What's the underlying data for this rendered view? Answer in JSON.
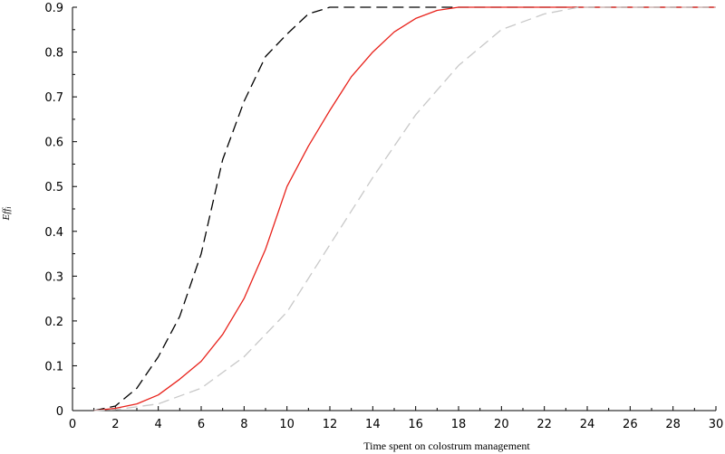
{
  "chart_data": {
    "type": "line",
    "title": "",
    "xlabel": "Time spent on colostrum management",
    "ylabel": "Eff",
    "ylabel_subscript": "i",
    "xlim": [
      0,
      30
    ],
    "ylim": [
      0,
      0.9
    ],
    "xticks": [
      0,
      2,
      4,
      6,
      8,
      10,
      12,
      14,
      16,
      18,
      20,
      22,
      24,
      26,
      28,
      30
    ],
    "yticks": [
      0,
      0.1,
      0.2,
      0.3,
      0.4,
      0.5,
      0.6,
      0.7,
      0.8,
      0.9
    ],
    "grid": false,
    "legend": "none",
    "series": [
      {
        "style": "dashed",
        "color": "#000000",
        "x": [
          1,
          2,
          3,
          4,
          5,
          6,
          7,
          8,
          9,
          10,
          11,
          12,
          30
        ],
        "y": [
          0,
          0.01,
          0.05,
          0.12,
          0.21,
          0.35,
          0.56,
          0.69,
          0.79,
          0.84,
          0.885,
          0.9,
          0.9
        ]
      },
      {
        "style": "solid",
        "color": "#e8221b",
        "x": [
          1,
          2,
          3,
          4,
          5,
          6,
          7,
          8,
          9,
          10,
          11,
          12,
          13,
          14,
          15,
          16,
          17,
          18,
          30
        ],
        "y": [
          0,
          0.005,
          0.015,
          0.035,
          0.07,
          0.11,
          0.17,
          0.25,
          0.36,
          0.5,
          0.59,
          0.67,
          0.745,
          0.8,
          0.845,
          0.875,
          0.893,
          0.9,
          0.9
        ]
      },
      {
        "style": "dashed",
        "color": "#c8c8c8",
        "x": [
          1,
          2,
          4,
          6,
          8,
          10,
          12,
          14,
          16,
          18,
          20,
          22,
          23.6,
          30
        ],
        "y": [
          0,
          0.002,
          0.015,
          0.05,
          0.12,
          0.22,
          0.37,
          0.52,
          0.66,
          0.77,
          0.85,
          0.885,
          0.9,
          0.9
        ]
      }
    ]
  }
}
